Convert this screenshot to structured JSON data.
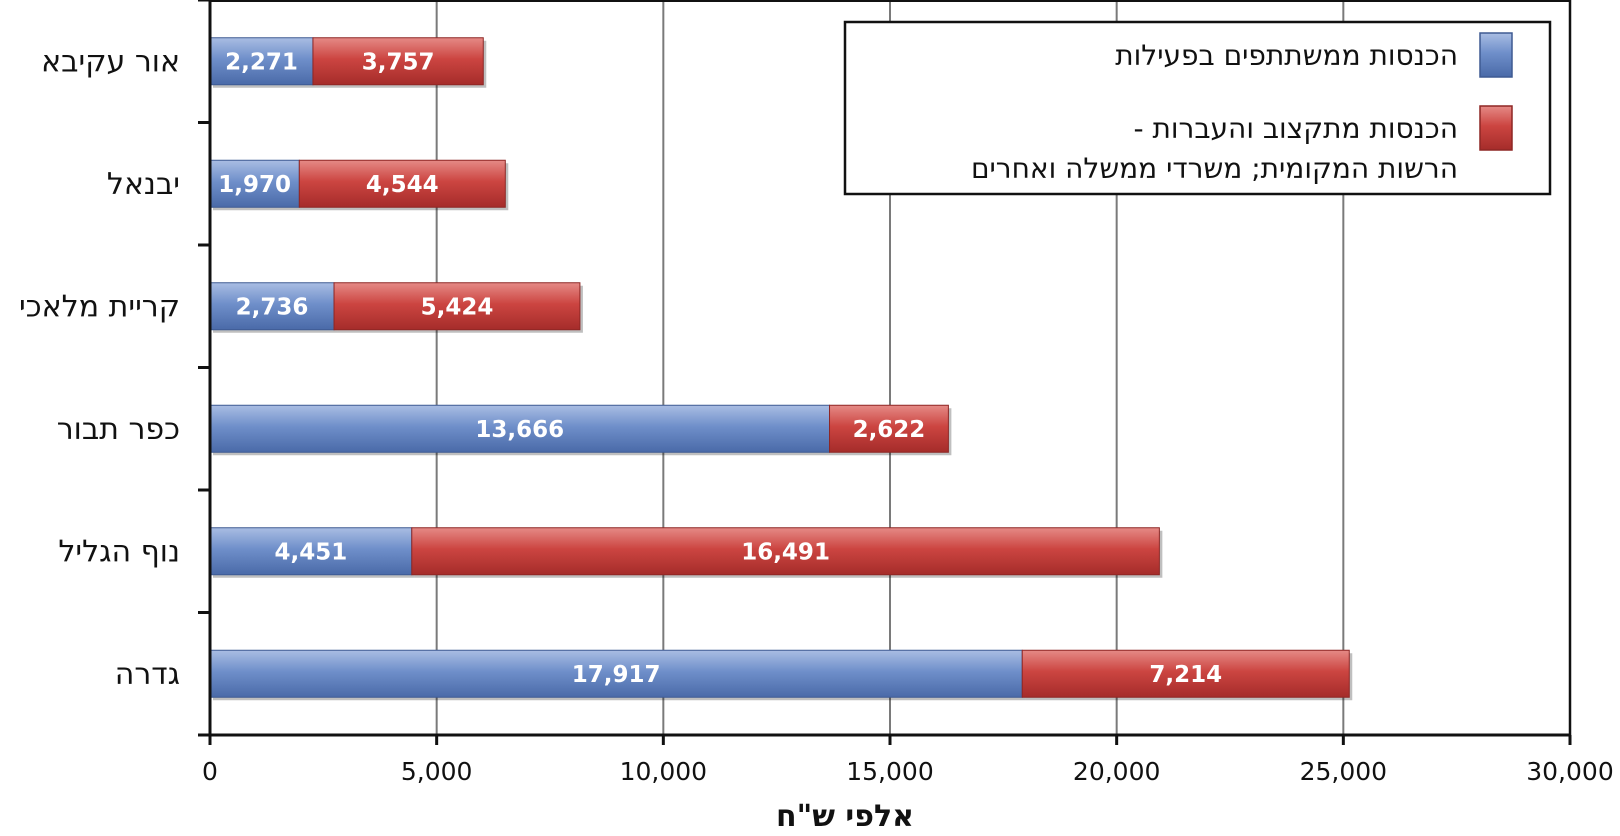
{
  "chart_data": {
    "type": "bar",
    "orientation": "horizontal",
    "stacked": true,
    "categories": [
      "אור עקיבא",
      "יבנאל",
      "קריית מלאכי",
      "כפר תבור",
      "נוף הגליל",
      "גדרה"
    ],
    "series": [
      {
        "name": "הכנסות ממשתתפים בפעילות",
        "color": "#5b7fbf",
        "values": [
          2271,
          1970,
          2736,
          13666,
          4451,
          17917
        ]
      },
      {
        "name": "הכנסות מתקצוב והעברות - הרשות המקומית; משרדי ממשלה ואחרים",
        "color": "#c8403e",
        "values": [
          3757,
          4544,
          5424,
          2622,
          16491,
          7214
        ]
      }
    ],
    "value_labels": [
      [
        "2,271",
        "1,970",
        "2,736",
        "13,666",
        "4,451",
        "17,917"
      ],
      [
        "3,757",
        "4,544",
        "5,424",
        "2,622",
        "16,491",
        "7,214"
      ]
    ],
    "xlim": [
      0,
      30000
    ],
    "xticks": [
      0,
      5000,
      10000,
      15000,
      20000,
      25000,
      30000
    ],
    "xtick_labels": [
      "0",
      "5,000",
      "10,000",
      "15,000",
      "20,000",
      "25,000",
      "30,000"
    ],
    "xlabel": "אלפי ש\"ח",
    "ylabel": "",
    "grid": "vertical",
    "legend_position": "top-right",
    "legend_lines": [
      [
        "הכנסות ממשתתפים בפעילות"
      ],
      [
        "הכנסות מתקצוב והעברות -",
        "הרשות המקומית; משרדי ממשלה ואחרים"
      ]
    ]
  }
}
